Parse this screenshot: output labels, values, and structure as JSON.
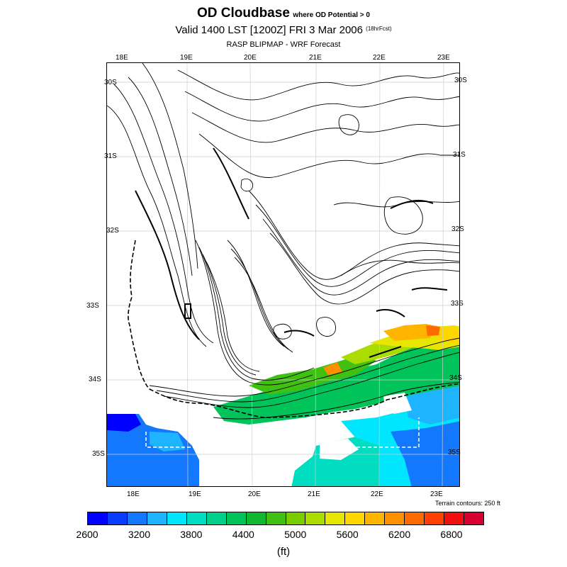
{
  "header": {
    "title": "OD Cloudbase",
    "subtitle": "where OD Potential > 0",
    "valid_line": "Valid 1400 LST [1200Z] FRI 3 Mar 2006",
    "forecast_hours": "(18hrFcst)",
    "model_line": "RASP BLIPMAP - WRF Forecast"
  },
  "axes": {
    "lon_top": [
      "18E",
      "19E",
      "20E",
      "21E",
      "22E",
      "23E"
    ],
    "lon_bottom": [
      "18E",
      "19E",
      "20E",
      "21E",
      "22E",
      "23E"
    ],
    "lat_left": [
      "30S",
      "31S",
      "32S",
      "33S",
      "34S",
      "35S"
    ],
    "lat_right": [
      "30S",
      "31S",
      "32S",
      "33S",
      "34S",
      "35S"
    ]
  },
  "terrain_note": "Terrain contours: 250 ft",
  "legend": {
    "colors": [
      "#0000ff",
      "#0a3cff",
      "#1478ff",
      "#1eb4ff",
      "#00e6ff",
      "#00ddc0",
      "#00d08a",
      "#00c45a",
      "#10b830",
      "#40c010",
      "#78cc00",
      "#aadc00",
      "#e6e600",
      "#ffd700",
      "#ffb400",
      "#ff9000",
      "#ff6a00",
      "#ff4000",
      "#f01010",
      "#d80030"
    ],
    "labels": [
      "2600",
      "3200",
      "3800",
      "4400",
      "5000",
      "5600",
      "6200",
      "6800"
    ],
    "units": "(ft)"
  },
  "chart_data": {
    "type": "heatmap",
    "title": "OD Cloudbase",
    "subtitle": "where OD Potential > 0",
    "units": "ft",
    "value_range": [
      2600,
      7000
    ],
    "lon_range_deg_E": [
      17.8,
      23.2
    ],
    "lat_range_deg_S": [
      29.9,
      35.6
    ],
    "terrain_contour_interval_ft": 250
  }
}
